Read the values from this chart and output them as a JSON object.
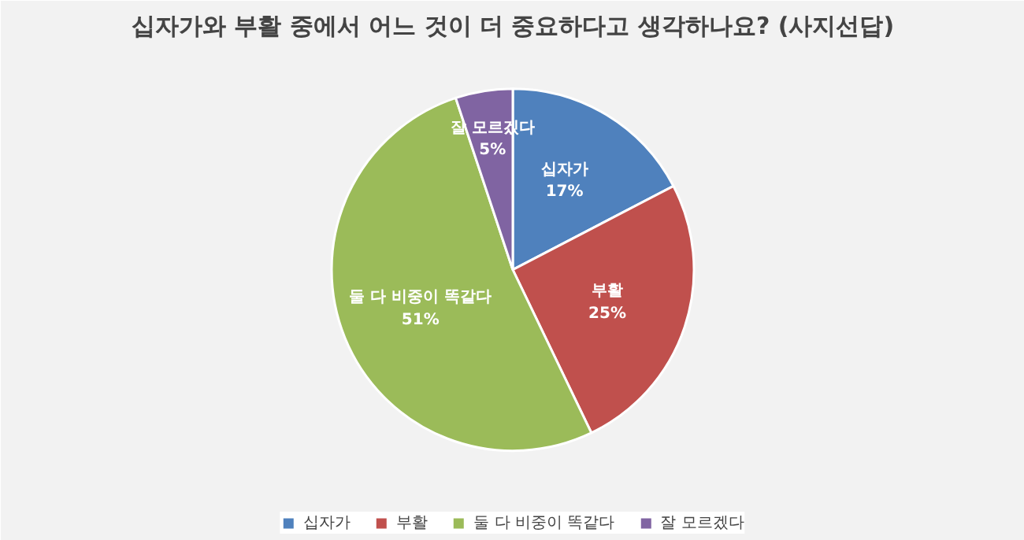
{
  "chart_data": {
    "type": "pie",
    "title": "십자가와 부활 중에서 어느 것이 더 중요하다고 생각하나요? (사지선답)",
    "categories": [
      "십자가",
      "부활",
      "둘 다 비중이 똑같다",
      "잘 모르겠다"
    ],
    "values": [
      17,
      25,
      51,
      5
    ],
    "colors": [
      "#4f81bd",
      "#c0504d",
      "#9bbb59",
      "#8064a2"
    ],
    "value_labels": [
      "17%",
      "25%",
      "51%",
      "5%"
    ],
    "legend": "bottom"
  }
}
